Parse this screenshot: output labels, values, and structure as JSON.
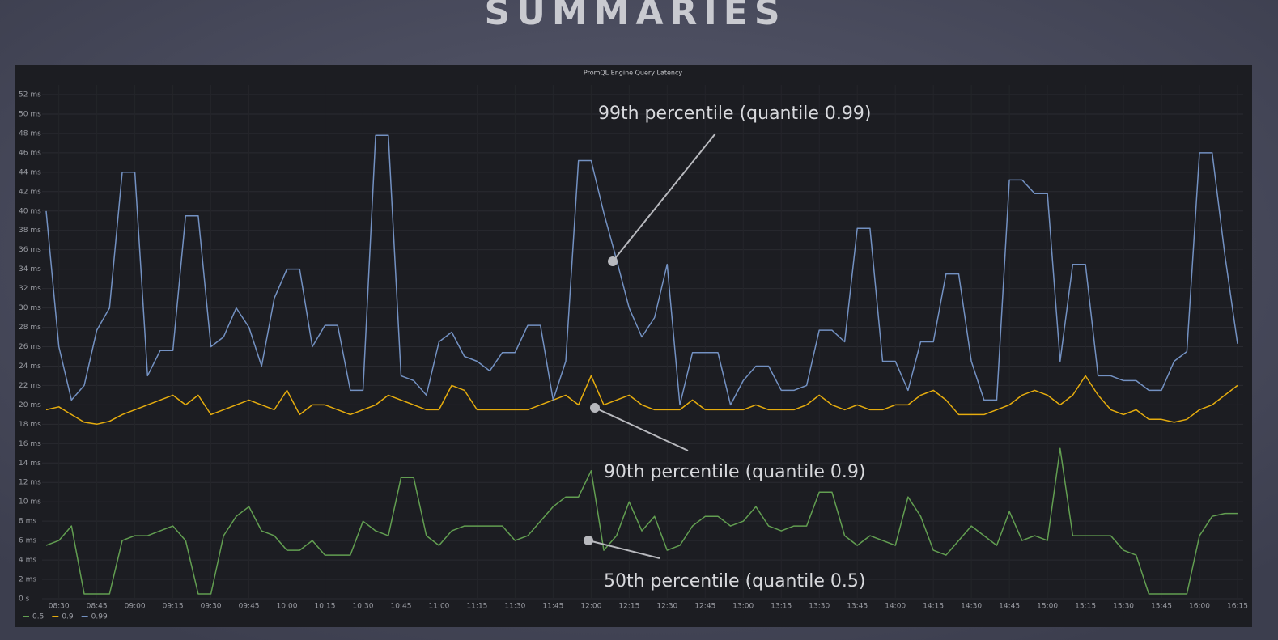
{
  "heading": "SUMMARIES",
  "chart_data": {
    "type": "line",
    "title": "PromQL Engine Query Latency",
    "annotations": [
      "99th percentile (quantile 0.99)",
      "90th percentile (quantile 0.9)",
      "50th percentile (quantile 0.5)"
    ],
    "categories": [
      null,
      "08:30",
      null,
      null,
      "08:45",
      null,
      null,
      "09:00",
      null,
      null,
      "09:15",
      null,
      null,
      "09:30",
      null,
      null,
      "09:45",
      null,
      null,
      "10:00",
      null,
      null,
      "10:15",
      null,
      null,
      "10:30",
      null,
      null,
      "10:45",
      null,
      null,
      "11:00",
      null,
      null,
      "11:15",
      null,
      null,
      "11:30",
      null,
      null,
      "11:45",
      null,
      null,
      "12:00",
      null,
      null,
      "12:15",
      null,
      null,
      "12:30",
      null,
      null,
      "12:45",
      null,
      null,
      "13:00",
      null,
      null,
      "13:15",
      null,
      null,
      "13:30",
      null,
      null,
      "13:45",
      null,
      null,
      "14:00",
      null,
      null,
      "14:15",
      null,
      null,
      "14:30",
      null,
      null,
      "14:45",
      null,
      null,
      "15:00",
      null,
      null,
      "15:15",
      null,
      null,
      "15:30",
      null,
      null,
      "15:45",
      null,
      null,
      "16:00",
      null,
      null,
      "16:15"
    ],
    "series": [
      {
        "name": "0.5",
        "color": "#629e51",
        "values": [
          5.5,
          6,
          7.5,
          0.5,
          0.5,
          0.5,
          6,
          6.5,
          6.5,
          7,
          7.5,
          6,
          0.5,
          0.5,
          6.5,
          8.5,
          9.5,
          7,
          6.5,
          5,
          5,
          6,
          4.5,
          4.5,
          4.5,
          8,
          7,
          6.5,
          12.5,
          12.5,
          6.5,
          5.5,
          7,
          7.5,
          7.5,
          7.5,
          7.5,
          6,
          6.5,
          8,
          9.5,
          10.5,
          10.5,
          13.2,
          5,
          6.5,
          10,
          7,
          8.5,
          5,
          5.5,
          7.5,
          8.5,
          8.5,
          7.5,
          8,
          9.5,
          7.5,
          7,
          7.5,
          7.5,
          11,
          11,
          6.5,
          5.5,
          6.5,
          6,
          5.5,
          10.5,
          8.5,
          5,
          4.5,
          6,
          7.5,
          6.5,
          5.5,
          9,
          6,
          6.5,
          6,
          15.5,
          6.5,
          6.5,
          6.5,
          6.5,
          5,
          4.5,
          0.5,
          0.5,
          0.5,
          0.5,
          6.5,
          8.5,
          8.8,
          8.8
        ]
      },
      {
        "name": "0.9",
        "color": "#e5ac0e",
        "values": [
          19.5,
          19.8,
          19,
          18.2,
          18,
          18.3,
          19,
          19.5,
          20,
          20.5,
          21,
          20,
          21,
          19,
          19.5,
          20,
          20.5,
          20,
          19.5,
          21.5,
          19,
          20,
          20,
          19.5,
          19,
          19.5,
          20,
          21,
          20.5,
          20,
          19.5,
          19.5,
          22,
          21.5,
          19.5,
          19.5,
          19.5,
          19.5,
          19.5,
          20,
          20.5,
          21,
          20,
          23,
          20,
          20.5,
          21,
          20,
          19.5,
          19.5,
          19.5,
          20.5,
          19.5,
          19.5,
          19.5,
          19.5,
          20,
          19.5,
          19.5,
          19.5,
          20,
          21,
          20,
          19.5,
          20,
          19.5,
          19.5,
          20,
          20,
          21,
          21.5,
          20.5,
          19,
          19,
          19,
          19.5,
          20,
          21,
          21.5,
          21,
          20,
          21,
          23,
          21,
          19.5,
          19,
          19.5,
          18.5,
          18.5,
          18.2,
          18.5,
          19.5,
          20,
          21,
          22
        ]
      },
      {
        "name": "0.99",
        "color": "#7391c2",
        "values": [
          40,
          26,
          20.5,
          22,
          27.7,
          30,
          44,
          44,
          23,
          25.6,
          25.6,
          39.5,
          39.5,
          26,
          27,
          30,
          28,
          24,
          31,
          34,
          34,
          26,
          28.2,
          28.2,
          21.5,
          21.5,
          47.8,
          47.8,
          23,
          22.5,
          21,
          26.5,
          27.5,
          25,
          24.5,
          23.5,
          25.4,
          25.4,
          28.2,
          28.2,
          20.5,
          24.5,
          45.2,
          45.2,
          39.8,
          35,
          30,
          27,
          29,
          34.5,
          20,
          25.4,
          25.4,
          25.4,
          20,
          22.5,
          24,
          24,
          21.5,
          21.5,
          22,
          27.7,
          27.7,
          26.5,
          38.2,
          38.2,
          24.5,
          24.5,
          21.5,
          26.5,
          26.5,
          33.5,
          33.5,
          24.5,
          20.5,
          20.5,
          43.2,
          43.2,
          41.8,
          41.8,
          24.5,
          34.5,
          34.5,
          23,
          23,
          22.5,
          22.5,
          21.5,
          21.5,
          24.5,
          25.5,
          46,
          46,
          35.5,
          26.3
        ]
      }
    ],
    "ylim": [
      0,
      53
    ],
    "yticks": [
      {
        "value": 0,
        "label": "0 s"
      },
      {
        "value": 2,
        "label": "2 ms"
      },
      {
        "value": 4,
        "label": "4 ms"
      },
      {
        "value": 6,
        "label": "6 ms"
      },
      {
        "value": 8,
        "label": "8 ms"
      },
      {
        "value": 10,
        "label": "10 ms"
      },
      {
        "value": 12,
        "label": "12 ms"
      },
      {
        "value": 14,
        "label": "14 ms"
      },
      {
        "value": 16,
        "label": "16 ms"
      },
      {
        "value": 18,
        "label": "18 ms"
      },
      {
        "value": 20,
        "label": "20 ms"
      },
      {
        "value": 22,
        "label": "22 ms"
      },
      {
        "value": 24,
        "label": "24 ms"
      },
      {
        "value": 26,
        "label": "26 ms"
      },
      {
        "value": 28,
        "label": "28 ms"
      },
      {
        "value": 30,
        "label": "30 ms"
      },
      {
        "value": 32,
        "label": "32 ms"
      },
      {
        "value": 34,
        "label": "34 ms"
      },
      {
        "value": 36,
        "label": "36 ms"
      },
      {
        "value": 38,
        "label": "38 ms"
      },
      {
        "value": 40,
        "label": "40 ms"
      },
      {
        "value": 42,
        "label": "42 ms"
      },
      {
        "value": 44,
        "label": "44 ms"
      },
      {
        "value": 46,
        "label": "46 ms"
      },
      {
        "value": 48,
        "label": "48 ms"
      },
      {
        "value": 50,
        "label": "50 ms"
      },
      {
        "value": 52,
        "label": "52 ms"
      }
    ],
    "grid": true,
    "legend": "bottom-left"
  }
}
